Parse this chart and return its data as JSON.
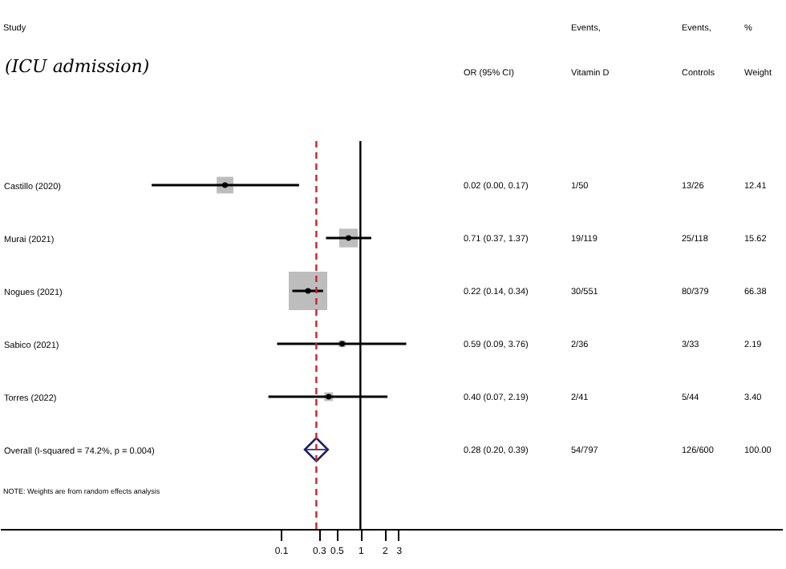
{
  "chart_data": {
    "type": "scatter",
    "title": "(ICU admission)",
    "orientation": "horizontal",
    "log": "x",
    "grid": false,
    "categories": [
      "Castillo (2020)",
      "Murai (2021)",
      "Nogues (2021)",
      "Sabico (2021)",
      "Torres (2022)",
      "Overall (I-squared = 74.2%, p = 0.004)"
    ],
    "xlim": [
      3e-05,
      200000
    ],
    "xticks": [
      0.1,
      0.3,
      0.5,
      1,
      2,
      3
    ],
    "series": [
      {
        "type": "bubble",
        "marker": "square",
        "color": "#bdbdbd",
        "values": [
          0.02,
          0.71,
          0.22,
          0.59,
          0.4,
          null
        ],
        "sizes": [
          0.187,
          0.235,
          1,
          0.033,
          0.051,
          null
        ],
        "errors": [
          [
            0.0024,
            0.17
          ],
          [
            0.37,
            1.37
          ],
          [
            0.14,
            0.34
          ],
          [
            0.09,
            3.76
          ],
          [
            0.07,
            2.19
          ],
          null
        ]
      },
      {
        "type": "scatter",
        "marker": "diamond",
        "color": "#1f1f6b",
        "values": [
          null,
          null,
          null,
          null,
          null,
          0.28
        ],
        "errors": [
          null,
          null,
          null,
          null,
          null,
          [
            0.2,
            0.39
          ]
        ]
      }
    ],
    "ref_lines": [
      {
        "axis": "x",
        "value": 1,
        "color": "#000000",
        "line_style": "solid"
      },
      {
        "axis": "x",
        "value": 0.28,
        "color": "#c0282e",
        "line_style": "dashed"
      }
    ],
    "annotations": [
      "Study",
      "Events,",
      "Events,",
      "%",
      "OR (95% CI)",
      "Vitamin D",
      "Controls",
      "Weight",
      "0.02 (0.00, 0.17)",
      "1/50",
      "13/26",
      "12.41",
      "0.71 (0.37, 1.37)",
      "19/119",
      "25/118",
      "15.62",
      "0.22 (0.14, 0.34)",
      "30/551",
      "80/379",
      "66.38",
      "0.59 (0.09, 3.76)",
      "2/36",
      "3/33",
      "2.19",
      "0.40 (0.07, 2.19)",
      "2/41",
      "5/44",
      "3.40",
      "0.28 (0.20, 0.39)",
      "54/797",
      "126/600",
      "100.00",
      "NOTE: Weights are from random effects analysis"
    ]
  }
}
